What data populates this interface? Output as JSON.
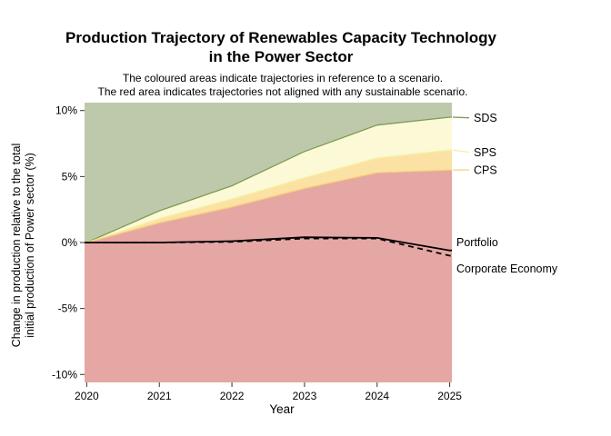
{
  "title": {
    "line1": "Production Trajectory of Renewables Capacity Technology",
    "line2": "in the Power Sector"
  },
  "subtitle": {
    "line1": "The coloured areas indicate trajectories in reference to a scenario.",
    "line2": "The red area indicates trajectories not aligned with any sustainable scenario."
  },
  "axes": {
    "x_title": "Year",
    "y_title_line1": "Change in production relative to the total",
    "y_title_line2": "initial production of Power sector (%)",
    "x_tick_labels": [
      "2020",
      "2021",
      "2022",
      "2023",
      "2024",
      "2025"
    ],
    "y_tick_labels": [
      "10%",
      "5%",
      "0%",
      "-5%",
      "-10%"
    ],
    "y_tick_values": [
      10,
      5,
      0,
      -5,
      -10
    ],
    "x_tick_values": [
      2020,
      2021,
      2022,
      2023,
      2024,
      2025
    ]
  },
  "chart_data": {
    "type": "area",
    "x": [
      2020,
      2021,
      2022,
      2023,
      2024,
      2025
    ],
    "xlim": [
      2019.97,
      2025.03
    ],
    "ylim": [
      -10.6,
      10.6
    ],
    "grid": false,
    "series": [
      {
        "name": "SDS",
        "kind": "scenario-boundary",
        "values": [
          0,
          2.4,
          4.3,
          6.9,
          8.9,
          9.5
        ],
        "line_color": "#7d9c52"
      },
      {
        "name": "SPS",
        "kind": "scenario-boundary",
        "values": [
          0,
          1.8,
          3.3,
          4.9,
          6.4,
          7.0
        ],
        "line_color": "#f6f0a2"
      },
      {
        "name": "CPS",
        "kind": "scenario-boundary",
        "values": [
          0,
          1.5,
          2.7,
          4.1,
          5.3,
          5.5
        ],
        "line_color": "#f7d179"
      },
      {
        "name": "Portfolio",
        "kind": "trajectory-line",
        "values": [
          0,
          0,
          0.1,
          0.4,
          0.35,
          -0.6
        ],
        "line_color": "#000000",
        "dash": null
      },
      {
        "name": "Corporate Economy",
        "kind": "trajectory-line",
        "values": [
          0,
          0,
          0.05,
          0.3,
          0.3,
          -1.0
        ],
        "line_color": "#000000",
        "dash": "6 4.5"
      }
    ],
    "bands": [
      {
        "name": "sds-aligned-area",
        "above": "SDS",
        "below": "panel-top",
        "fill": "#bec9ab"
      },
      {
        "name": "sps-aligned-area",
        "above": "SPS",
        "below": "SDS",
        "fill": "#fcf9d7"
      },
      {
        "name": "cps-aligned-area",
        "above": "CPS",
        "below": "SPS",
        "fill": "#fbe2a4"
      },
      {
        "name": "not-aligned-area",
        "above": "panel-bottom",
        "below": "CPS",
        "fill": "#e5a7a4"
      }
    ]
  },
  "annotations": [
    {
      "label": "SDS",
      "has_leader": true,
      "leader_color": "#7d9c52",
      "edge_value": 9.5,
      "label_value": 9.45
    },
    {
      "label": "SPS",
      "has_leader": true,
      "leader_color": "#f6f0a2",
      "edge_value": 7.0,
      "label_value": 6.85
    },
    {
      "label": "CPS",
      "has_leader": true,
      "leader_color": "#f7d179",
      "edge_value": 5.5,
      "label_value": 5.5
    },
    {
      "label": "Portfolio",
      "has_leader": false,
      "leader_color": null,
      "edge_value": null,
      "label_value": 0.05
    },
    {
      "label": "Corporate Economy",
      "has_leader": false,
      "leader_color": null,
      "edge_value": null,
      "label_value": -1.95
    }
  ],
  "colors": {
    "background": "#ffffff",
    "tick": "#333333",
    "sds_area": "#bec9ab",
    "sps_area": "#fcf9d7",
    "cps_area": "#fbe2a4",
    "red_area": "#e5a7a4",
    "sds_line": "#7d9c52",
    "sps_line": "#f6f0a2",
    "cps_line": "#f7d179",
    "trajectory_line": "#000000"
  }
}
